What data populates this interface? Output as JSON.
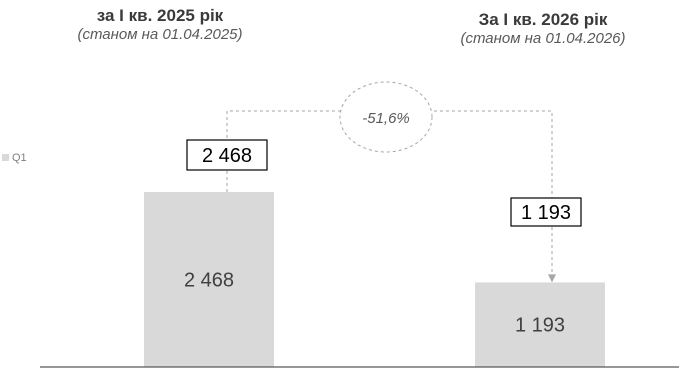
{
  "titles": {
    "left": {
      "year": "за I кв. 2025 рік",
      "as_of": "(станом на 01.04.2025)"
    },
    "right": {
      "year": "За I кв. 2026 рік",
      "as_of": "(станом на 01.04.2026)"
    }
  },
  "change_label": "-51,6%",
  "colors": {
    "bar": "#d9d9d9",
    "axis": "#595959",
    "text": "#404040",
    "connector": "#a6a6a6"
  },
  "chart_data": {
    "type": "bar",
    "categories": [
      "за I кв. 2025 рік",
      "За I кв. 2026 рік"
    ],
    "series": [
      {
        "name": "Q1",
        "values": [
          2468,
          1193
        ],
        "labels": [
          "2 468",
          "1 193"
        ]
      }
    ],
    "value_labels_boxed": [
      "2 468",
      "1 193"
    ],
    "annotation": "-51,6%",
    "legend": {
      "position": "left",
      "entries": [
        "Q1"
      ]
    },
    "ylim": [
      0,
      3000
    ],
    "grid": false
  }
}
